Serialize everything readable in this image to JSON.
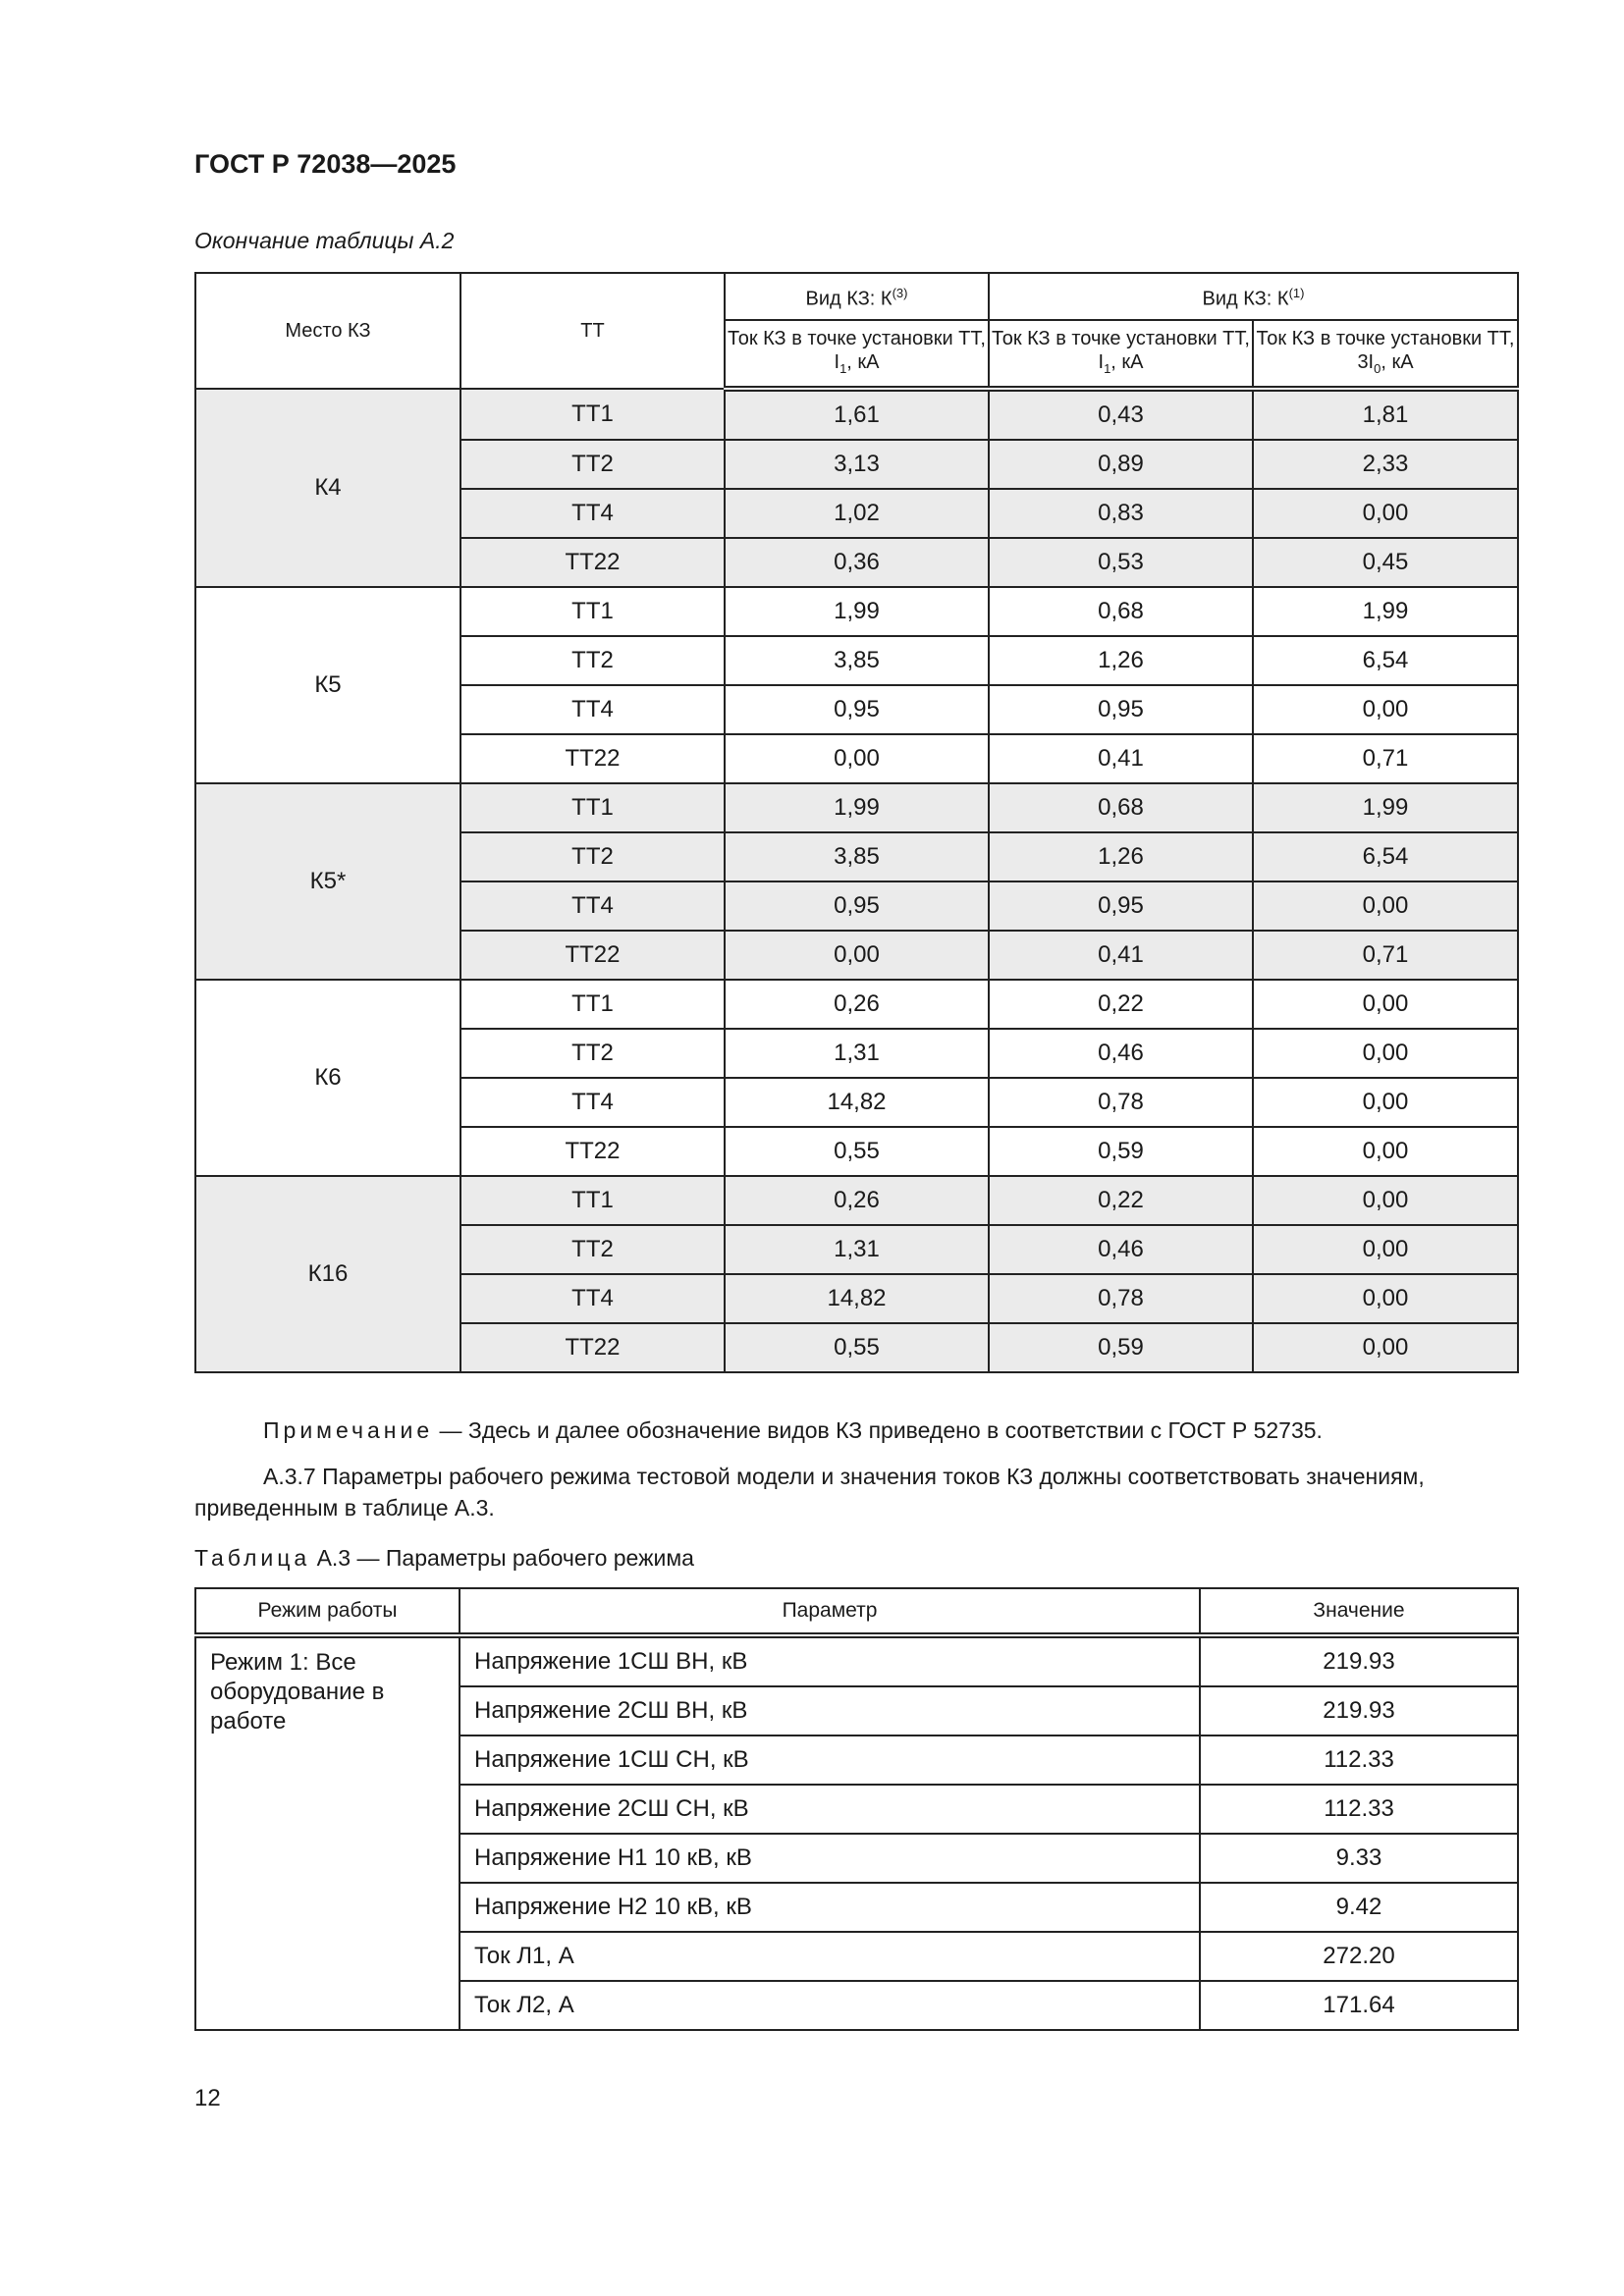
{
  "header": {
    "title": "ГОСТ Р 72038—2025"
  },
  "table_a2": {
    "continuation_caption": "Окончание таблицы А.2",
    "headers": {
      "place": "Место КЗ",
      "tt": "ТТ",
      "group1": "Вид КЗ: К",
      "group1_sup": "(3)",
      "group2": "Вид КЗ: К",
      "group2_sup": "(1)",
      "col1_pre": "Ток КЗ в точке установки ТТ, I",
      "col1_sub": "1",
      "col1_post": ", кА",
      "col2_pre": "Ток КЗ в точке установки ТТ, I",
      "col2_sub": "1",
      "col2_post": ", кА",
      "col3_pre": "Ток КЗ в точке установки ТТ, 3I",
      "col3_sub": "0",
      "col3_post": ", кА"
    },
    "groups": [
      {
        "place": "К4",
        "shaded": true,
        "rows": [
          [
            "ТТ1",
            "1,61",
            "0,43",
            "1,81"
          ],
          [
            "ТТ2",
            "3,13",
            "0,89",
            "2,33"
          ],
          [
            "ТТ4",
            "1,02",
            "0,83",
            "0,00"
          ],
          [
            "ТТ22",
            "0,36",
            "0,53",
            "0,45"
          ]
        ]
      },
      {
        "place": "К5",
        "shaded": false,
        "rows": [
          [
            "ТТ1",
            "1,99",
            "0,68",
            "1,99"
          ],
          [
            "ТТ2",
            "3,85",
            "1,26",
            "6,54"
          ],
          [
            "ТТ4",
            "0,95",
            "0,95",
            "0,00"
          ],
          [
            "ТТ22",
            "0,00",
            "0,41",
            "0,71"
          ]
        ]
      },
      {
        "place": "К5*",
        "shaded": true,
        "rows": [
          [
            "ТТ1",
            "1,99",
            "0,68",
            "1,99"
          ],
          [
            "ТТ2",
            "3,85",
            "1,26",
            "6,54"
          ],
          [
            "ТТ4",
            "0,95",
            "0,95",
            "0,00"
          ],
          [
            "ТТ22",
            "0,00",
            "0,41",
            "0,71"
          ]
        ]
      },
      {
        "place": "К6",
        "shaded": false,
        "rows": [
          [
            "ТТ1",
            "0,26",
            "0,22",
            "0,00"
          ],
          [
            "ТТ2",
            "1,31",
            "0,46",
            "0,00"
          ],
          [
            "ТТ4",
            "14,82",
            "0,78",
            "0,00"
          ],
          [
            "ТТ22",
            "0,55",
            "0,59",
            "0,00"
          ]
        ]
      },
      {
        "place": "К16",
        "shaded": true,
        "rows": [
          [
            "ТТ1",
            "0,26",
            "0,22",
            "0,00"
          ],
          [
            "ТТ2",
            "1,31",
            "0,46",
            "0,00"
          ],
          [
            "ТТ4",
            "14,82",
            "0,78",
            "0,00"
          ],
          [
            "ТТ22",
            "0,55",
            "0,59",
            "0,00"
          ]
        ]
      }
    ]
  },
  "note": {
    "label": "Примечание",
    "text": " — Здесь и далее обозначение видов КЗ приведено в соответствии с ГОСТ Р 52735."
  },
  "paragraph": "А.3.7 Параметры рабочего режима тестовой модели и значения токов КЗ должны соответствовать значениям, приведенным в таблице А.3.",
  "table_a3": {
    "caption_label": "Таблица",
    "caption_text": " А.3 — Параметры рабочего режима",
    "headers": [
      "Режим работы",
      "Параметр",
      "Значение"
    ],
    "mode": "Режим 1: Все оборудование в работе",
    "rows": [
      [
        "Напряжение 1СШ ВН, кВ",
        "219.93"
      ],
      [
        "Напряжение 2СШ ВН, кВ",
        "219.93"
      ],
      [
        "Напряжение 1СШ СН, кВ",
        "112.33"
      ],
      [
        "Напряжение 2СШ СН, кВ",
        "112.33"
      ],
      [
        "Напряжение Н1 10 кВ, кВ",
        "9.33"
      ],
      [
        "Напряжение Н2 10 кВ, кВ",
        "9.42"
      ],
      [
        "Ток Л1, А",
        "272.20"
      ],
      [
        "Ток Л2, А",
        "171.64"
      ]
    ]
  },
  "footer": {
    "page_number": "12"
  }
}
